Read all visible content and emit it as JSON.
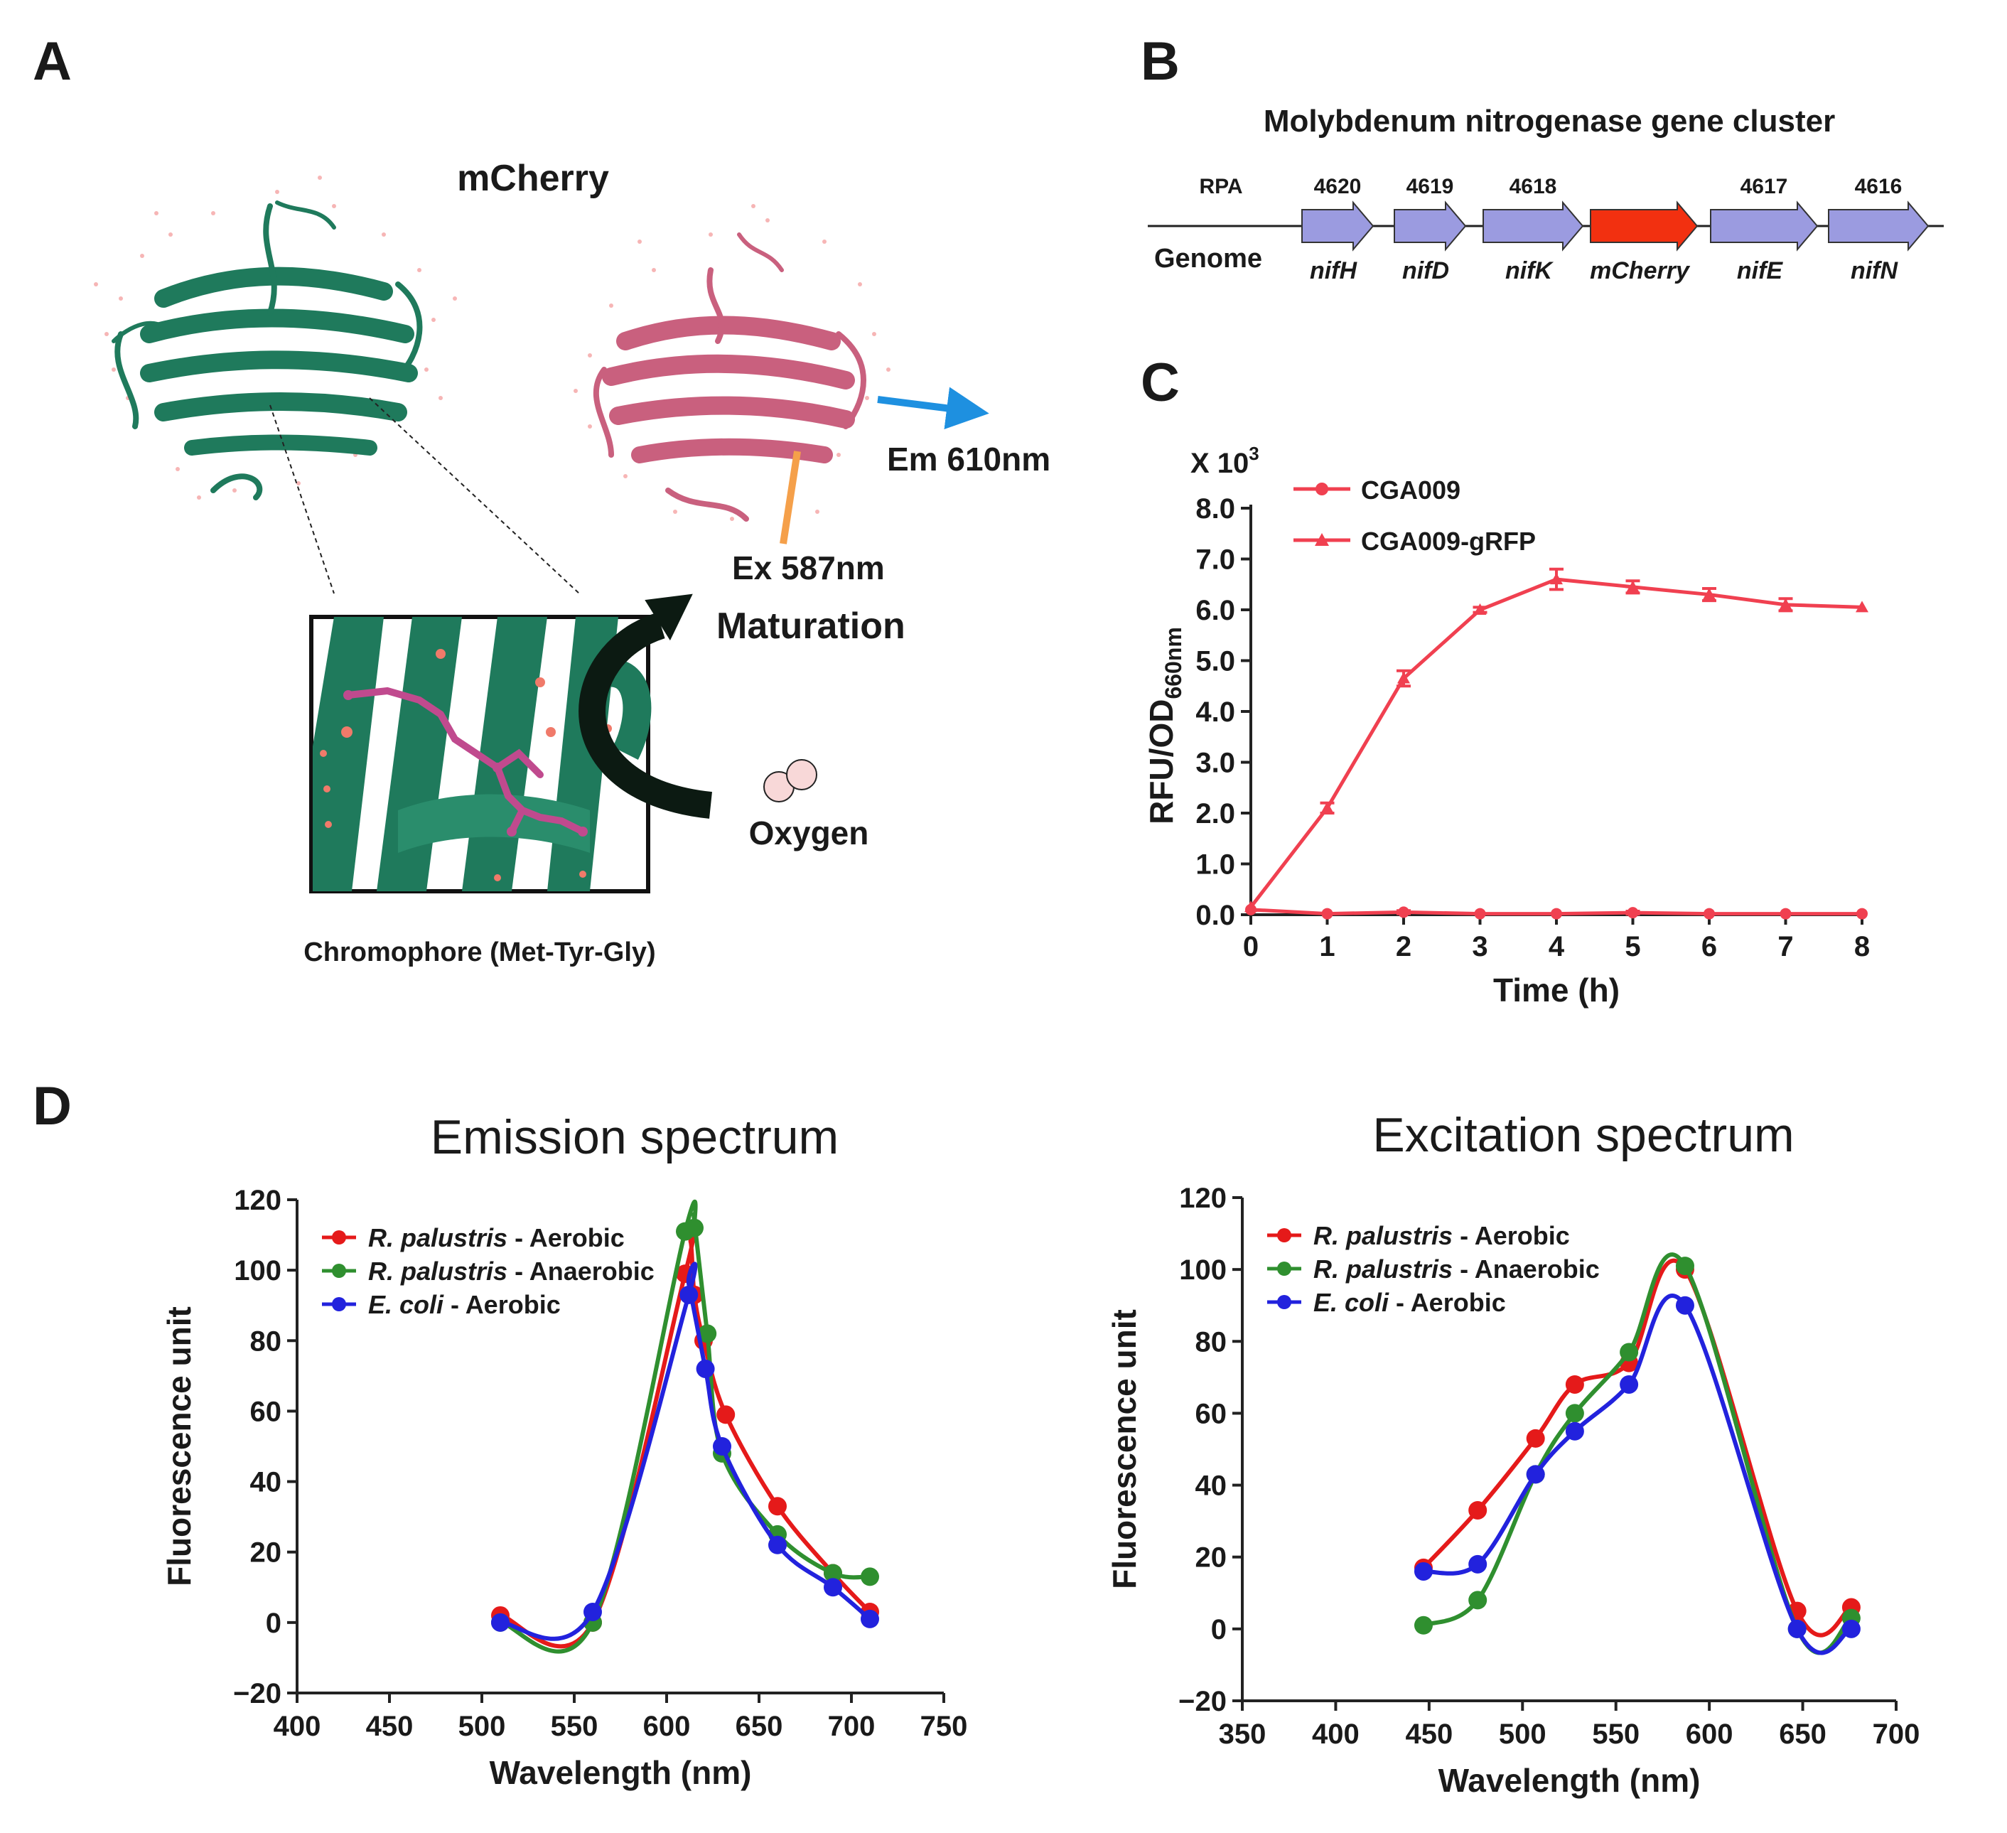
{
  "panel_a": {
    "label": "A",
    "protein_name": "mCherry",
    "emission_label": "Em 610nm",
    "excitation_label": "Ex 587nm",
    "maturation_label": "Maturation",
    "oxygen_label": "Oxygen",
    "chromophore_caption": "Chromophore (Met-Tyr-Gly)"
  },
  "panel_b": {
    "label": "B",
    "title": "Molybdenum nitrogenase gene cluster",
    "rpa_label": "RPA",
    "genome_label": "Genome",
    "genes": [
      {
        "locus": "4620",
        "name": "nifH",
        "color": "#9b9be0"
      },
      {
        "locus": "4619",
        "name": "nifD",
        "color": "#9b9be0"
      },
      {
        "locus": "4618",
        "name": "nifK",
        "color": "#9b9be0"
      },
      {
        "locus": "",
        "name": "mCherry",
        "color": "#f23010"
      },
      {
        "locus": "4617",
        "name": "nifE",
        "color": "#9b9be0"
      },
      {
        "locus": "4616",
        "name": "nifN",
        "color": "#9b9be0"
      }
    ]
  },
  "panel_c": {
    "label": "C"
  },
  "panel_d": {
    "label": "D"
  },
  "chart_data": [
    {
      "id": "C",
      "type": "line",
      "title": "",
      "xlabel": "Time (h)",
      "ylabel": "RFU/OD",
      "ylabel_sub": "660nm",
      "y_multiplier_label": "X 10",
      "y_multiplier_exp": "3",
      "x": [
        0,
        1,
        2,
        3,
        4,
        5,
        6,
        7,
        8
      ],
      "xlim": [
        0,
        8
      ],
      "ylim": [
        0,
        8
      ],
      "yticks": [
        "0.0",
        "1.0",
        "2.0",
        "3.0",
        "4.0",
        "5.0",
        "6.0",
        "7.0",
        "8.0"
      ],
      "xticks": [
        "0",
        "1",
        "2",
        "3",
        "4",
        "5",
        "6",
        "7",
        "8"
      ],
      "color": "#f04050",
      "series": [
        {
          "name": "CGA009",
          "marker": "circle",
          "values": [
            0.1,
            0.02,
            0.05,
            0.02,
            0.02,
            0.04,
            0.02,
            0.02,
            0.02
          ],
          "errors": [
            0,
            0,
            0.03,
            0,
            0,
            0.03,
            0,
            0,
            0
          ]
        },
        {
          "name": "CGA009-gRFP",
          "marker": "triangle",
          "values": [
            0.15,
            2.1,
            4.65,
            6.0,
            6.6,
            6.45,
            6.3,
            6.1,
            6.05
          ],
          "errors": [
            0,
            0.1,
            0.15,
            0.05,
            0.2,
            0.12,
            0.12,
            0.12,
            0
          ]
        }
      ]
    },
    {
      "id": "D1",
      "type": "line",
      "title": "Emission spectrum",
      "xlabel": "Wavelength (nm)",
      "ylabel": "Fluorescence unit",
      "xlim": [
        400,
        750
      ],
      "ylim": [
        -20,
        120
      ],
      "xticks": [
        "400",
        "450",
        "500",
        "550",
        "600",
        "650",
        "700",
        "750"
      ],
      "yticks": [
        "−20",
        "0",
        "20",
        "40",
        "60",
        "80",
        "100",
        "120"
      ],
      "series": [
        {
          "name_italic": "R. palustris",
          "name_rest": " - Aerobic",
          "color": "#e51a1a",
          "points": [
            [
              510,
              2
            ],
            [
              560,
              0
            ],
            [
              610,
              99
            ],
            [
              615,
              93
            ],
            [
              620,
              80
            ],
            [
              632,
              59
            ],
            [
              660,
              33
            ],
            [
              690,
              14
            ],
            [
              710,
              3
            ]
          ],
          "peak": [
            613,
            108
          ]
        },
        {
          "name_italic": "R. palustris",
          "name_rest": " - Anaerobic",
          "color": "#2f8f2f",
          "points": [
            [
              510,
              0
            ],
            [
              560,
              0
            ],
            [
              610,
              111
            ],
            [
              615,
              112
            ],
            [
              622,
              82
            ],
            [
              630,
              48
            ],
            [
              660,
              25
            ],
            [
              690,
              14
            ],
            [
              710,
              13
            ]
          ],
          "peak": [
            615,
            114
          ]
        },
        {
          "name_italic": "E. coli",
          "name_rest": " - Aerobic",
          "color": "#2222dd",
          "points": [
            [
              510,
              0
            ],
            [
              560,
              3
            ],
            [
              612,
              93
            ],
            [
              621,
              72
            ],
            [
              630,
              50
            ],
            [
              660,
              22
            ],
            [
              690,
              10
            ],
            [
              710,
              1
            ]
          ],
          "peak": [
            612,
            96
          ]
        }
      ]
    },
    {
      "id": "D2",
      "type": "line",
      "title": "Excitation spectrum",
      "xlabel": "Wavelength (nm)",
      "ylabel": "Fluorescence unit",
      "xlim": [
        350,
        700
      ],
      "ylim": [
        -20,
        120
      ],
      "xticks": [
        "350",
        "400",
        "450",
        "500",
        "550",
        "600",
        "650",
        "700"
      ],
      "yticks": [
        "−20",
        "0",
        "20",
        "40",
        "60",
        "80",
        "100",
        "120"
      ],
      "series": [
        {
          "name_italic": "R. palustris",
          "name_rest": " - Aerobic",
          "color": "#e51a1a",
          "points": [
            [
              447,
              17
            ],
            [
              476,
              33
            ],
            [
              507,
              53
            ],
            [
              528,
              68
            ],
            [
              557,
              74
            ],
            [
              587,
              100
            ],
            [
              647,
              5
            ],
            [
              676,
              6
            ]
          ]
        },
        {
          "name_italic": "R. palustris",
          "name_rest": " - Anaerobic",
          "color": "#2f8f2f",
          "points": [
            [
              447,
              1
            ],
            [
              476,
              8
            ],
            [
              507,
              43
            ],
            [
              528,
              60
            ],
            [
              557,
              77
            ],
            [
              587,
              101
            ],
            [
              647,
              0
            ],
            [
              676,
              3
            ]
          ]
        },
        {
          "name_italic": "E. coli",
          "name_rest": " - Aerobic",
          "color": "#2222dd",
          "points": [
            [
              447,
              16
            ],
            [
              476,
              18
            ],
            [
              507,
              43
            ],
            [
              528,
              55
            ],
            [
              557,
              68
            ],
            [
              587,
              90
            ],
            [
              647,
              0
            ],
            [
              676,
              0
            ]
          ]
        }
      ]
    }
  ]
}
